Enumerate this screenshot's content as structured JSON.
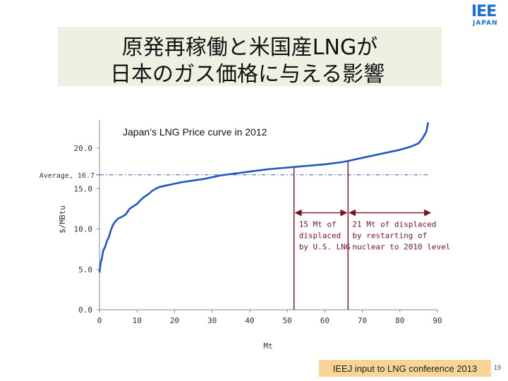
{
  "logo": {
    "main": "IEE",
    "sub": "JAPAN"
  },
  "slide_title": {
    "line1": "原発再稼働と米国産LNGが",
    "line2": "日本のガス価格に与える影響"
  },
  "footer": {
    "text": "IEEJ  input to LNG conference 2013"
  },
  "page_number": "19",
  "chart_data": {
    "type": "line",
    "title": "Japan’s LNG Price curve in 2012",
    "xlabel": "Mt",
    "ylabel": "$/MBtu",
    "xlim": [
      0,
      90
    ],
    "ylim": [
      0,
      23.5
    ],
    "xticks": [
      "0",
      "10",
      "20",
      "30",
      "40",
      "50",
      "60",
      "70",
      "80",
      "90"
    ],
    "yticks": [
      "0.0",
      "5.0",
      "10.0",
      "15.0",
      "20.0"
    ],
    "series": [
      {
        "color": "#2255c4",
        "x": [
          0,
          0.3,
          0.6,
          1,
          1.5,
          2,
          2.5,
          3,
          3.5,
          4,
          5,
          6,
          7,
          8,
          9,
          10,
          11,
          12,
          13,
          14,
          15,
          16,
          17,
          18,
          20,
          22,
          25,
          28,
          30,
          32,
          35,
          40,
          45,
          50,
          55,
          60,
          65,
          70,
          75,
          80,
          83,
          85,
          86,
          86.5,
          87,
          87.3,
          87.5
        ],
        "y": [
          4.6,
          5.8,
          6.3,
          7.3,
          7.8,
          8.5,
          9.0,
          9.8,
          10.4,
          10.8,
          11.3,
          11.5,
          11.8,
          12.5,
          12.8,
          13.1,
          13.6,
          14.0,
          14.3,
          14.7,
          15.0,
          15.2,
          15.3,
          15.4,
          15.6,
          15.8,
          16.0,
          16.2,
          16.4,
          16.6,
          16.8,
          17.1,
          17.4,
          17.6,
          17.8,
          18.0,
          18.3,
          18.8,
          19.3,
          19.8,
          20.2,
          20.6,
          21.2,
          21.6,
          22.0,
          22.6,
          23.2
        ]
      }
    ],
    "average": {
      "label": "Average, 16.7",
      "value": 16.7
    },
    "markers": [
      {
        "x": 51.8,
        "y": 17.6
      },
      {
        "x": 66.2,
        "y": 18.3
      }
    ],
    "ranges": [
      {
        "from": 51.8,
        "to": 66.2,
        "y": 12.0
      },
      {
        "from": 66.2,
        "to": 88.5,
        "y": 12.0
      }
    ],
    "annotations": [
      {
        "lines": [
          "15 Mt of",
          "displaced",
          "by U.S. LNG"
        ]
      },
      {
        "lines": [
          "21 Mt of displaced",
          "by restarting of",
          "nuclear to 2010 level"
        ]
      }
    ],
    "annotation_color": "#7a1020"
  }
}
